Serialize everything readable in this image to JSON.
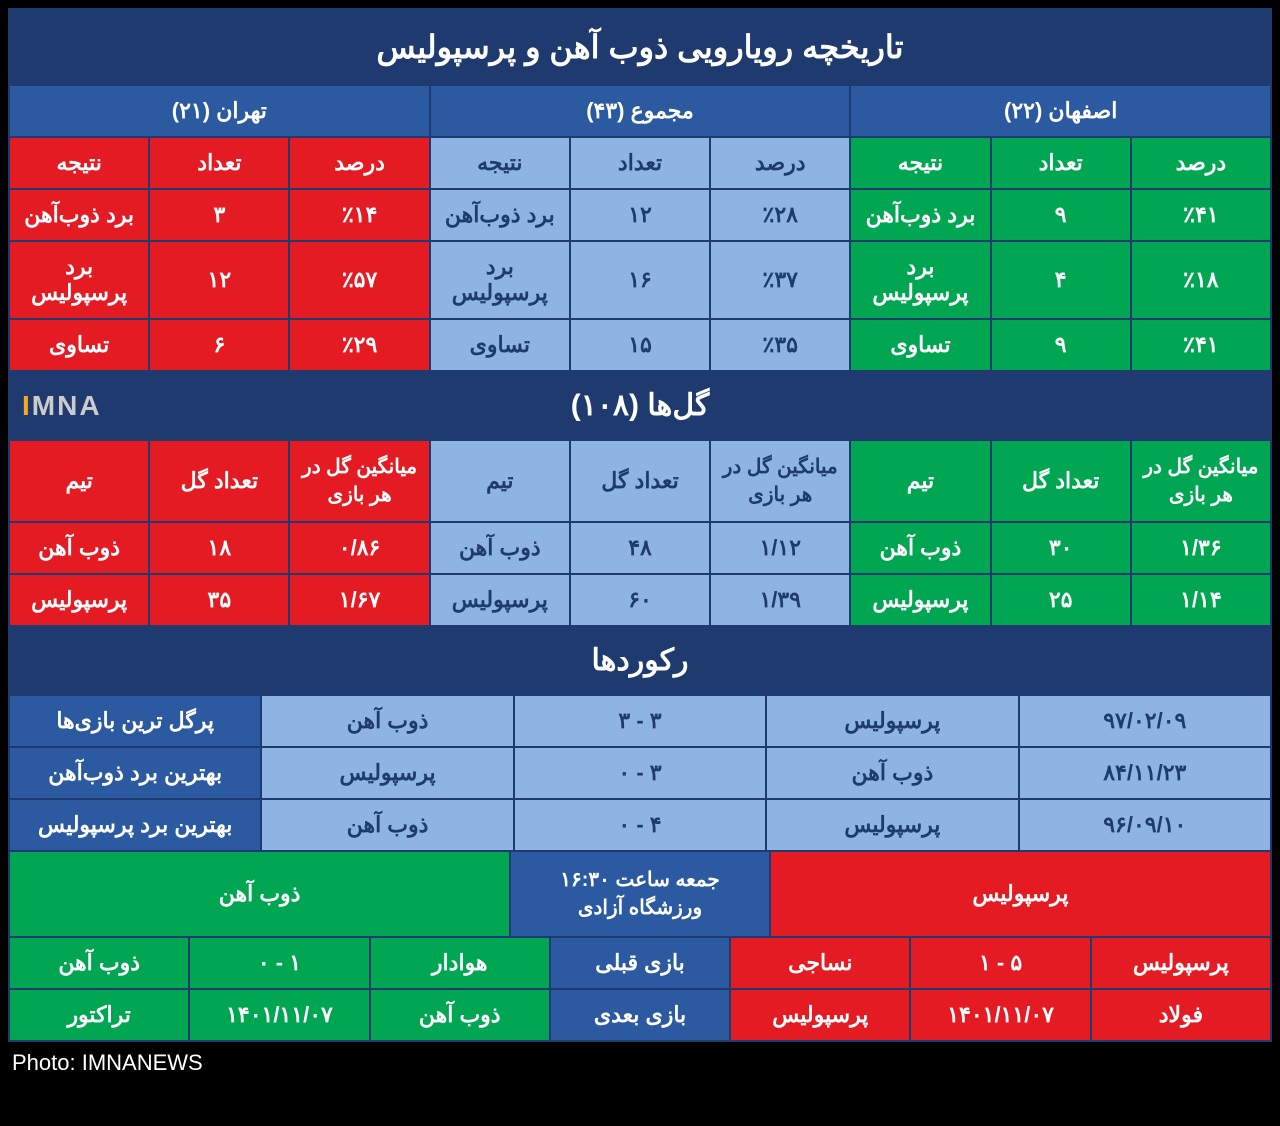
{
  "title": "تاریخچه رویارویی ذوب آهن و پرسپولیس",
  "colors": {
    "dark_blue": "#1e3a6e",
    "mid_blue": "#2c5aa0",
    "light_blue": "#8db4e2",
    "red": "#e41b23",
    "green": "#00a651",
    "orange": "#f5a623"
  },
  "locations": {
    "isfahan": {
      "label": "اصفهان (۲۲)"
    },
    "total": {
      "label": "مجموع (۴۳)"
    },
    "tehran": {
      "label": "تهران (۲۱)"
    }
  },
  "stat_headers": {
    "percent": "درصد",
    "count": "تعداد",
    "result": "نتیجه"
  },
  "results": {
    "isfahan": {
      "zob_win": {
        "percent": "٪۴۱",
        "count": "۹",
        "label": "برد ذوب‌آهن"
      },
      "per_win": {
        "percent": "٪۱۸",
        "count": "۴",
        "label": "برد پرسپولیس"
      },
      "draw": {
        "percent": "٪۴۱",
        "count": "۹",
        "label": "تساوی"
      }
    },
    "total": {
      "zob_win": {
        "percent": "٪۲۸",
        "count": "۱۲",
        "label": "برد ذوب‌آهن"
      },
      "per_win": {
        "percent": "٪۳۷",
        "count": "۱۶",
        "label": "برد پرسپولیس"
      },
      "draw": {
        "percent": "٪۳۵",
        "count": "۱۵",
        "label": "تساوی"
      }
    },
    "tehran": {
      "zob_win": {
        "percent": "٪۱۴",
        "count": "۳",
        "label": "برد ذوب‌آهن"
      },
      "per_win": {
        "percent": "٪۵۷",
        "count": "۱۲",
        "label": "برد پرسپولیس"
      },
      "draw": {
        "percent": "٪۲۹",
        "count": "۶",
        "label": "تساوی"
      }
    }
  },
  "goals": {
    "title": "گل‌ها (۱۰۸)",
    "headers": {
      "avg": "میانگین گل در هر بازی",
      "count": "تعداد گل",
      "team": "تیم"
    },
    "isfahan": {
      "zob": {
        "avg": "۱/۳۶",
        "count": "۳۰",
        "team": "ذوب آهن"
      },
      "per": {
        "avg": "۱/۱۴",
        "count": "۲۵",
        "team": "پرسپولیس"
      }
    },
    "total": {
      "zob": {
        "avg": "۱/۱۲",
        "count": "۴۸",
        "team": "ذوب آهن"
      },
      "per": {
        "avg": "۱/۳۹",
        "count": "۶۰",
        "team": "پرسپولیس"
      }
    },
    "tehran": {
      "zob": {
        "avg": "۰/۸۶",
        "count": "۱۸",
        "team": "ذوب آهن"
      },
      "per": {
        "avg": "۱/۶۷",
        "count": "۳۵",
        "team": "پرسپولیس"
      }
    }
  },
  "records": {
    "title": "رکوردها",
    "rows": {
      "r1": {
        "date": "۹۷/۰۲/۰۹",
        "team2": "پرسپولیس",
        "score": "۳ - ۳",
        "team1": "ذوب آهن",
        "label": "پرگل ترین بازی‌ها"
      },
      "r2": {
        "date": "۸۴/۱۱/۲۳",
        "team2": "ذوب آهن",
        "score": "۳ - ۰",
        "team1": "پرسپولیس",
        "label": "بهترین برد ذوب‌آهن"
      },
      "r3": {
        "date": "۹۶/۰۹/۱۰",
        "team2": "پرسپولیس",
        "score": "۴ - ۰",
        "team1": "ذوب آهن",
        "label": "بهترین برد پرسپولیس"
      }
    }
  },
  "match": {
    "home": "پرسپولیس",
    "info_line1": "جمعه ساعت ۱۶:۳۰",
    "info_line2": "ورزشگاه آزادی",
    "away": "ذوب آهن"
  },
  "prev_next": {
    "prev": {
      "label": "بازی قبلی",
      "home": {
        "team": "پرسپولیس",
        "score": "۵ - ۱",
        "opp": "نساجی"
      },
      "away": {
        "team": "هوادار",
        "score": "۱ - ۰",
        "opp": "ذوب آهن"
      }
    },
    "next": {
      "label": "بازی بعدی",
      "home": {
        "team": "فولاد",
        "date": "۱۴۰۱/۱۱/۰۷",
        "opp": "پرسپولیس"
      },
      "away": {
        "team": "ذوب آهن",
        "date": "۱۴۰۱/۱۱/۰۷",
        "opp": "تراکتور"
      }
    }
  },
  "watermark": {
    "i": "I",
    "rest": "MNA"
  },
  "credit": "Photo: IMNANEWS"
}
